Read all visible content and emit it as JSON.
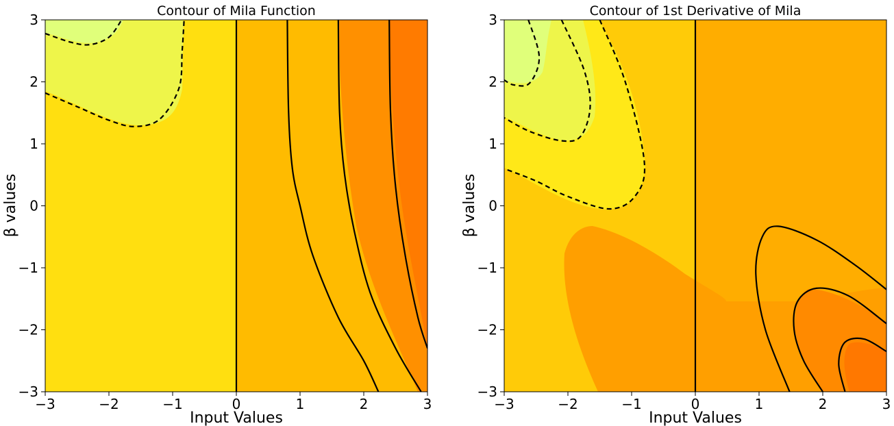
{
  "charts": [
    {
      "title": "Contour of Mila Function",
      "xlabel": "Input Values",
      "ylabel": "β values",
      "x_ticks": [
        "−3",
        "−2",
        "−1",
        "0",
        "1",
        "2",
        "3"
      ],
      "y_ticks": [
        "3",
        "2",
        "1",
        "0",
        "−1",
        "−2",
        "−3"
      ]
    },
    {
      "title": "Contour of 1st Derivative of Mila",
      "xlabel": "Input Values",
      "ylabel": "β values",
      "x_ticks": [
        "−3",
        "−2",
        "−1",
        "0",
        "1",
        "2",
        "3"
      ],
      "y_ticks": [
        "3",
        "2",
        "1",
        "0",
        "−1",
        "−2",
        "−3"
      ]
    }
  ],
  "chart_data": [
    {
      "type": "contour",
      "title": "Contour of Mila Function",
      "xlabel": "Input Values",
      "ylabel": "β values",
      "xlim": [
        -3,
        3
      ],
      "ylim": [
        -3,
        3
      ],
      "colormap": "Wistia",
      "colors": {
        "lightest": "#e0ff7a",
        "light": "#eef54a",
        "mid_yellow": "#ffdf10",
        "amber": "#ffbb00",
        "orange": "#ff9000",
        "dark_orange": "#ff7b00",
        "contour_line": "#000000"
      },
      "contour_lines": [
        {
          "style": "dashed",
          "points": [
            [
              -3,
              2.78
            ],
            [
              -2.6,
              2.64
            ],
            [
              -2.3,
              2.6
            ],
            [
              -2.0,
              2.72
            ],
            [
              -1.8,
              3.0
            ]
          ]
        },
        {
          "style": "dashed",
          "points": [
            [
              -3,
              1.82
            ],
            [
              -2.5,
              1.6
            ],
            [
              -2.0,
              1.38
            ],
            [
              -1.6,
              1.28
            ],
            [
              -1.2,
              1.4
            ],
            [
              -0.9,
              1.9
            ],
            [
              -0.85,
              2.5
            ],
            [
              -0.82,
              3.0
            ]
          ]
        },
        {
          "style": "solid",
          "points": [
            [
              0.0,
              3.0
            ],
            [
              0.0,
              0.0
            ],
            [
              0.0,
              -3.0
            ]
          ]
        },
        {
          "style": "solid",
          "points": [
            [
              0.8,
              3.0
            ],
            [
              0.82,
              1.5
            ],
            [
              0.88,
              0.6
            ],
            [
              1.0,
              0.0
            ],
            [
              1.2,
              -0.8
            ],
            [
              1.6,
              -1.8
            ],
            [
              2.0,
              -2.5
            ],
            [
              2.23,
              -3.0
            ]
          ]
        },
        {
          "style": "solid",
          "points": [
            [
              1.6,
              3.0
            ],
            [
              1.62,
              1.5
            ],
            [
              1.7,
              0.5
            ],
            [
              1.85,
              -0.4
            ],
            [
              2.1,
              -1.4
            ],
            [
              2.5,
              -2.3
            ],
            [
              2.9,
              -3.0
            ]
          ]
        },
        {
          "style": "solid",
          "points": [
            [
              2.4,
              3.0
            ],
            [
              2.42,
              1.5
            ],
            [
              2.5,
              0.3
            ],
            [
              2.65,
              -0.8
            ],
            [
              2.85,
              -1.8
            ],
            [
              3.0,
              -2.3
            ]
          ]
        }
      ]
    },
    {
      "type": "contour",
      "title": "Contour of 1st Derivative of Mila",
      "xlabel": "Input Values",
      "ylabel": "β values",
      "xlim": [
        -3,
        3
      ],
      "ylim": [
        -3,
        3
      ],
      "colormap": "Wistia",
      "colors": {
        "lightest": "#e0ff7a",
        "light": "#eef54a",
        "mid_yellow": "#ffe818",
        "amber_light": "#ffcb08",
        "amber": "#ffad00",
        "orange_light": "#ff9f00",
        "orange": "#ff8a00",
        "dark_orange": "#ff7800",
        "contour_line": "#000000"
      },
      "contour_lines": [
        {
          "style": "dashed",
          "points": [
            [
              -2.62,
              3.0
            ],
            [
              -2.45,
              2.4
            ],
            [
              -2.6,
              1.98
            ],
            [
              -2.85,
              1.95
            ],
            [
              -3.0,
              2.03
            ]
          ]
        },
        {
          "style": "dashed",
          "points": [
            [
              -2.1,
              3.0
            ],
            [
              -1.75,
              2.2
            ],
            [
              -1.65,
              1.6
            ],
            [
              -1.8,
              1.12
            ],
            [
              -2.1,
              1.05
            ],
            [
              -2.6,
              1.2
            ],
            [
              -3.0,
              1.42
            ]
          ]
        },
        {
          "style": "dashed",
          "points": [
            [
              -1.5,
              3.0
            ],
            [
              -1.1,
              2.0
            ],
            [
              -0.8,
              0.7
            ],
            [
              -0.95,
              0.15
            ],
            [
              -1.35,
              -0.05
            ],
            [
              -2.0,
              0.15
            ],
            [
              -2.5,
              0.4
            ],
            [
              -3.0,
              0.6
            ]
          ]
        },
        {
          "style": "solid",
          "points": [
            [
              0.0,
              3.0
            ],
            [
              0.0,
              0.0
            ],
            [
              0.0,
              -3.0
            ]
          ]
        },
        {
          "style": "solid",
          "points": [
            [
              1.48,
              -3.0
            ],
            [
              1.1,
              -2.0
            ],
            [
              0.95,
              -1.1
            ],
            [
              1.05,
              -0.5
            ],
            [
              1.3,
              -0.33
            ],
            [
              1.9,
              -0.55
            ],
            [
              2.5,
              -0.95
            ],
            [
              3.0,
              -1.35
            ]
          ]
        },
        {
          "style": "solid",
          "points": [
            [
              3.0,
              -1.9
            ],
            [
              2.4,
              -1.45
            ],
            [
              1.9,
              -1.33
            ],
            [
              1.6,
              -1.55
            ],
            [
              1.55,
              -2.0
            ],
            [
              1.7,
              -2.5
            ],
            [
              2.0,
              -3.0
            ]
          ]
        },
        {
          "style": "solid",
          "points": [
            [
              3.0,
              -2.35
            ],
            [
              2.65,
              -2.15
            ],
            [
              2.35,
              -2.2
            ],
            [
              2.25,
              -2.55
            ],
            [
              2.35,
              -3.0
            ]
          ]
        }
      ]
    }
  ]
}
